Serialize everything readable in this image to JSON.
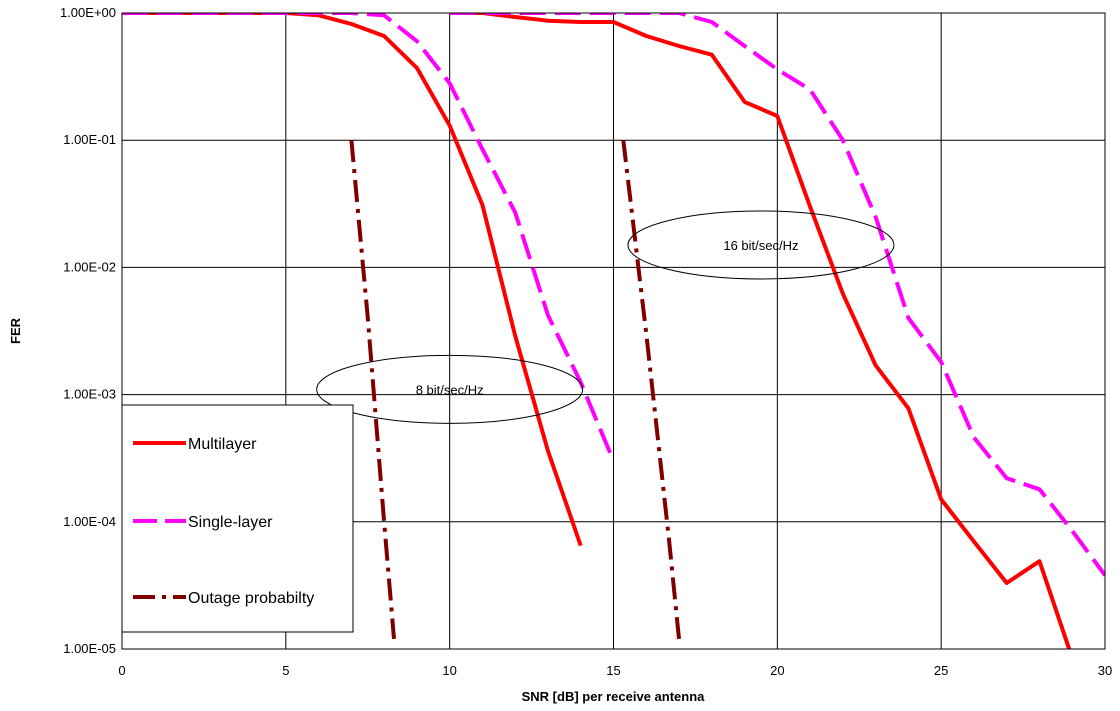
{
  "chart_data": {
    "type": "line",
    "xlabel": "SNR [dB] per receive antenna",
    "ylabel": "FER",
    "xlim": [
      0,
      30
    ],
    "ylim": [
      1e-05,
      1
    ],
    "yscale": "log",
    "grid": true,
    "legend_position": "bottom-left",
    "x_ticks": [
      0,
      5,
      10,
      15,
      20,
      25,
      30
    ],
    "y_tick_labels": [
      "1.00E+00",
      "1.00E-01",
      "1.00E-02",
      "1.00E-03",
      "1.00E-04",
      "1.00E-05"
    ],
    "y_tick_values": [
      1,
      0.1,
      0.01,
      0.001,
      0.0001,
      1e-05
    ],
    "series": [
      {
        "name": "Multilayer",
        "color": "#ff0000",
        "dash": "solid",
        "segments": [
          {
            "x": [
              0,
              5,
              6,
              7,
              8,
              9,
              10,
              11,
              12,
              13,
              14
            ],
            "y": [
              1.0,
              1.0,
              0.96,
              0.82,
              0.66,
              0.37,
              0.13,
              0.031,
              0.0029,
              0.00036,
              6.5e-05
            ]
          },
          {
            "x": [
              10,
              11,
              12,
              13,
              14,
              15,
              16,
              17,
              18,
              19,
              20,
              21,
              22,
              23,
              24,
              25,
              26,
              27,
              28,
              29,
              30
            ],
            "y": [
              1.0,
              1.0,
              0.93,
              0.87,
              0.85,
              0.85,
              0.66,
              0.55,
              0.47,
              0.2,
              0.155,
              0.03,
              0.0062,
              0.0017,
              0.00078,
              0.00015,
              7e-05,
              3.3e-05,
              4.9e-05,
              8.5e-06,
              1.8e-06
            ]
          }
        ]
      },
      {
        "name": "Single-layer",
        "color": "#ff00ff",
        "dash": "long-dash",
        "segments": [
          {
            "x": [
              0,
              5,
              6,
              7,
              8,
              9,
              10,
              11,
              12,
              13,
              14,
              15
            ],
            "y": [
              1.0,
              1.0,
              1.0,
              1.0,
              0.96,
              0.6,
              0.28,
              0.085,
              0.027,
              0.0042,
              0.00125,
              0.0003
            ]
          },
          {
            "x": [
              10,
              11,
              12,
              13,
              14,
              15,
              16,
              17,
              18,
              19,
              20,
              21,
              22,
              23,
              24,
              25,
              26,
              27,
              28,
              29,
              30
            ],
            "y": [
              1.0,
              1.0,
              1.0,
              1.0,
              1.0,
              1.0,
              1.0,
              1.0,
              0.85,
              0.55,
              0.36,
              0.25,
              0.1,
              0.025,
              0.004,
              0.0018,
              0.00046,
              0.00022,
              0.00018,
              8.5e-05,
              3.8e-05
            ]
          }
        ]
      },
      {
        "name": "Outage probabilty",
        "color": "#800000",
        "dash": "dash-dot",
        "segments": [
          {
            "x": [
              7.0,
              7.5,
              8.0,
              8.3
            ],
            "y": [
              0.1,
              0.004,
              0.0001,
              1.2e-05
            ]
          },
          {
            "x": [
              15.3,
              16.0,
              16.7,
              17.0
            ],
            "y": [
              0.1,
              0.003,
              7e-05,
              1.2e-05
            ]
          }
        ]
      }
    ],
    "annotations": [
      {
        "text": "16 bit/sec/Hz",
        "x": 19.5,
        "y": 0.015
      },
      {
        "text": "8 bit/sec/Hz",
        "x": 10.0,
        "y": 0.0011
      }
    ]
  }
}
